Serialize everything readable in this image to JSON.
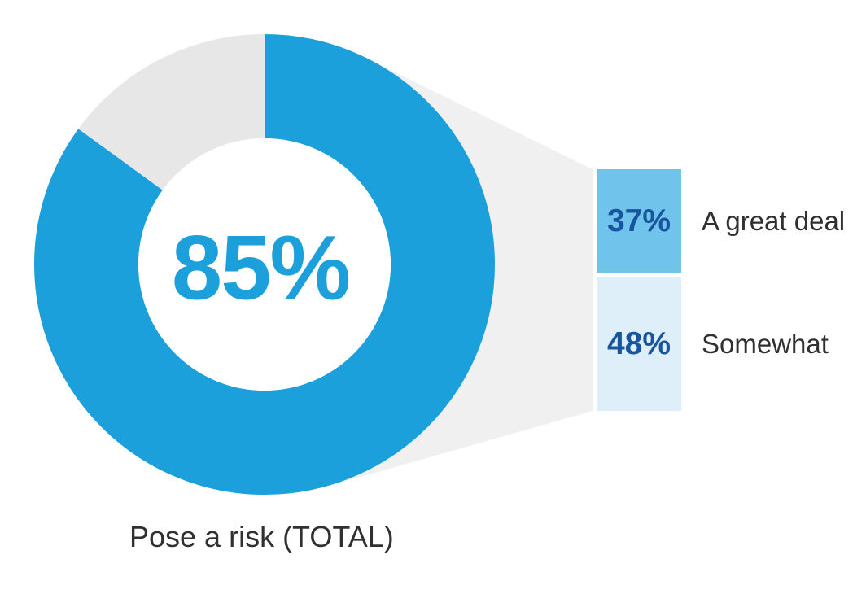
{
  "chart_data": {
    "type": "pie",
    "subtype": "donut-with-breakout",
    "title": "",
    "center_value": 85,
    "center_display": "85%",
    "total_label": "Pose a risk (TOTAL)",
    "remainder_value": 15,
    "series": [
      {
        "name": "A great deal",
        "value": 37,
        "display": "37%"
      },
      {
        "name": "Somewhat",
        "value": 48,
        "display": "48%"
      }
    ],
    "legend_position": "right",
    "donut_start": "top",
    "donut_direction": "clockwise",
    "colors": {
      "primary_blue": "#1CA0DC",
      "remainder_gray": "#E7E7E8",
      "funnel_gray": "#F0F0F1",
      "segment1_fill": "#70C3EA",
      "segment2_fill": "#DEEFFA",
      "value_navy": "#19559E",
      "label_dark": "#303030",
      "background": "#FFFFFF"
    }
  }
}
